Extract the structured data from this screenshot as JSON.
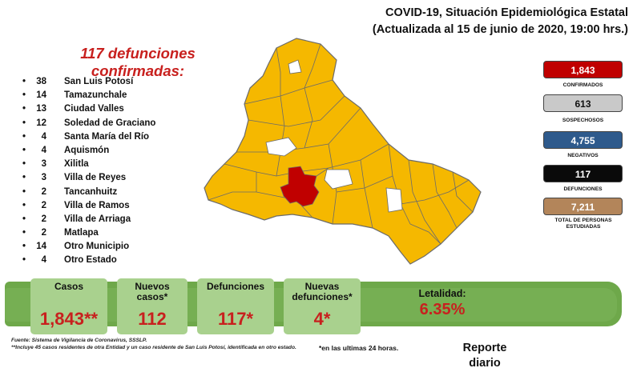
{
  "header": {
    "title_line1": "COVID-19, Situación Epidemiológica Estatal",
    "title_line2": "(Actualizada al 15 de junio de 2020, 19:00 hrs.)"
  },
  "headline": {
    "line1": "117 defunciones",
    "line2": "confirmadas:"
  },
  "municipalities": [
    {
      "count": "38",
      "name": "San Luis Potosí"
    },
    {
      "count": "14",
      "name": "Tamazunchale"
    },
    {
      "count": "13",
      "name": "Ciudad Valles"
    },
    {
      "count": "12",
      "name": "Soledad de Graciano"
    },
    {
      "count": "4",
      "name": "Santa María del Río"
    },
    {
      "count": "4",
      "name": "Aquismón"
    },
    {
      "count": "3",
      "name": "Xilitla"
    },
    {
      "count": "3",
      "name": "Villa de Reyes"
    },
    {
      "count": "2",
      "name": "Tancanhuitz"
    },
    {
      "count": "2",
      "name": "Villa de Ramos"
    },
    {
      "count": "2",
      "name": "Villa de Arriaga"
    },
    {
      "count": "2",
      "name": "Matlapa"
    },
    {
      "count": "14",
      "name": "Otro Municipio"
    },
    {
      "count": "4",
      "name": "Otro Estado"
    }
  ],
  "stats": [
    {
      "value": "1,843",
      "label": "CONFIRMADOS",
      "bg": "#c00000",
      "fg": "#ffffff"
    },
    {
      "value": "613",
      "label": "SOSPECHOSOS",
      "bg": "#c9c9c9",
      "fg": "#111111"
    },
    {
      "value": "4,755",
      "label": "NEGATIVOS",
      "bg": "#2e5a8c",
      "fg": "#ffffff"
    },
    {
      "value": "117",
      "label": "DEFUNCIONES",
      "bg": "#0a0a0a",
      "fg": "#ffffff"
    },
    {
      "value": "7,211",
      "label": "TOTAL DE PERSONAS ESTUDIADAS",
      "bg": "#b3855a",
      "fg": "#ffffff"
    }
  ],
  "summary": {
    "casos_label": "Casos",
    "casos_value": "1,843**",
    "nuevos_label": "Nuevos casos*",
    "nuevos_value": "112",
    "def_label": "Defunciones",
    "def_value": "117*",
    "nuevas_def_label": "Nuevas defunciones*",
    "nuevas_def_value": "4*",
    "letalidad_label": "Letalidad:",
    "letalidad_value": "6.35%"
  },
  "footer": {
    "source": "Fuente:  Sistema de Vigilancia de Coronavirus, SSSLP.",
    "note": "**Incluye 45 casos residentes de otra Entidad y un caso residente de San Luis Potosí, identificada en otro estado.",
    "note24": "*en las ultimas 24 horas.",
    "report_line1": "Reporte",
    "report_line2": "diario"
  },
  "map_colors": {
    "affected": "#f5b800",
    "highlight": "#c00000",
    "unaffected": "#ffffff",
    "border": "#6b6b6b"
  }
}
